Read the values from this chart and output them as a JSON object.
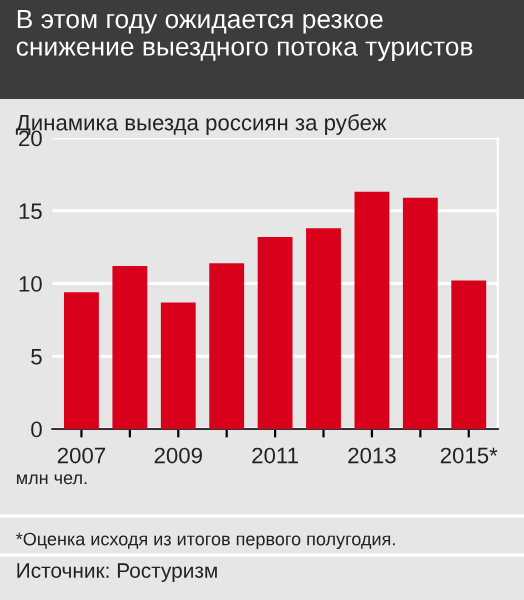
{
  "chart_data": {
    "type": "bar",
    "title": "В этом году ожидается резкое\nснижение выездного потока туристов",
    "subtitle": "Динамика выезда россиян за рубеж",
    "ylabel": "млн чел.",
    "categories": [
      "2007",
      null,
      "2009",
      null,
      "2011",
      null,
      "2013",
      null,
      "2015*"
    ],
    "values": [
      9.4,
      11.2,
      8.7,
      11.4,
      13.2,
      13.8,
      16.3,
      15.9,
      10.2
    ],
    "color": "#d9001b",
    "ylim": [
      0,
      20
    ],
    "yticks": [
      0,
      5,
      10,
      15,
      20
    ],
    "grid": "y",
    "legend": false,
    "annotations": [
      "*Оценка исходя из итогов первого полугодия.",
      "Источник: Ростуризм"
    ]
  }
}
